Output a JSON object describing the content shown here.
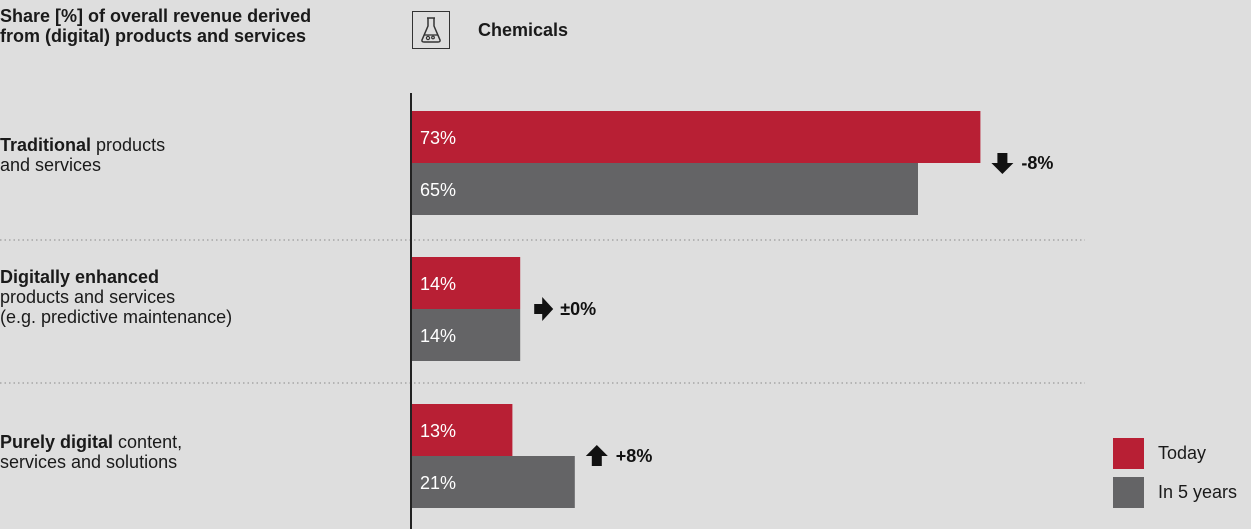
{
  "heading": "Share [%] of overall revenue derived from (digital) products and services",
  "sector": {
    "label": "Chemicals",
    "icon": "flask-icon"
  },
  "colors": {
    "today": "#b81f34",
    "in_5_years": "#646466"
  },
  "chart_data": {
    "type": "bar",
    "orientation": "horizontal",
    "title": "Share [%] of overall revenue derived from (digital) products and services",
    "subtitle": "Chemicals",
    "categories": [
      {
        "bold": "Traditional",
        "rest": "products",
        "line2": "and services",
        "line3": ""
      },
      {
        "bold": "Digitally enhanced",
        "rest": "",
        "line2": "products and services",
        "line3": "(e.g. predictive maintenance)"
      },
      {
        "bold": "Purely digital",
        "rest": "content,",
        "line2": "services and solutions",
        "line3": ""
      }
    ],
    "series": [
      {
        "name": "Today",
        "values": [
          73,
          14,
          13
        ],
        "labels": [
          "73%",
          "14%",
          "13%"
        ]
      },
      {
        "name": "In 5 years",
        "values": [
          65,
          14,
          21
        ],
        "labels": [
          "65%",
          "14%",
          "21%"
        ]
      }
    ],
    "changes": [
      {
        "label": "-8%",
        "direction": "down",
        "icon": "arrow-down-icon"
      },
      {
        "label": "±0%",
        "direction": "flat",
        "icon": "arrow-right-icon"
      },
      {
        "label": "+8%",
        "direction": "up",
        "icon": "arrow-up-icon"
      }
    ],
    "xlim": [
      0,
      100
    ],
    "legend_position": "bottom-right",
    "grid": false
  }
}
